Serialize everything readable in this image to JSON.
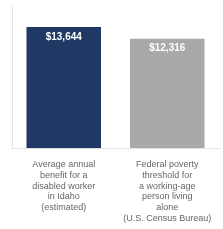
{
  "chart_data": {
    "type": "bar",
    "categories": [
      [
        "Average annual",
        "benefit for a",
        "disabled worker",
        "in Idaho",
        "(estimated)"
      ],
      [
        "Federal poverty",
        "threshold for",
        "a working-age",
        "person living",
        "alone",
        "(U.S. Census Bureau)"
      ]
    ],
    "values": [
      13644,
      12316
    ],
    "value_labels": [
      "$13,644",
      "$12,316"
    ],
    "data_labels": true,
    "colors": [
      "#1F3864",
      "#A9A9A9"
    ],
    "ylim": [
      0,
      16000
    ],
    "yticks": [],
    "tick_labels": "x",
    "grid": false,
    "legend": "none"
  }
}
